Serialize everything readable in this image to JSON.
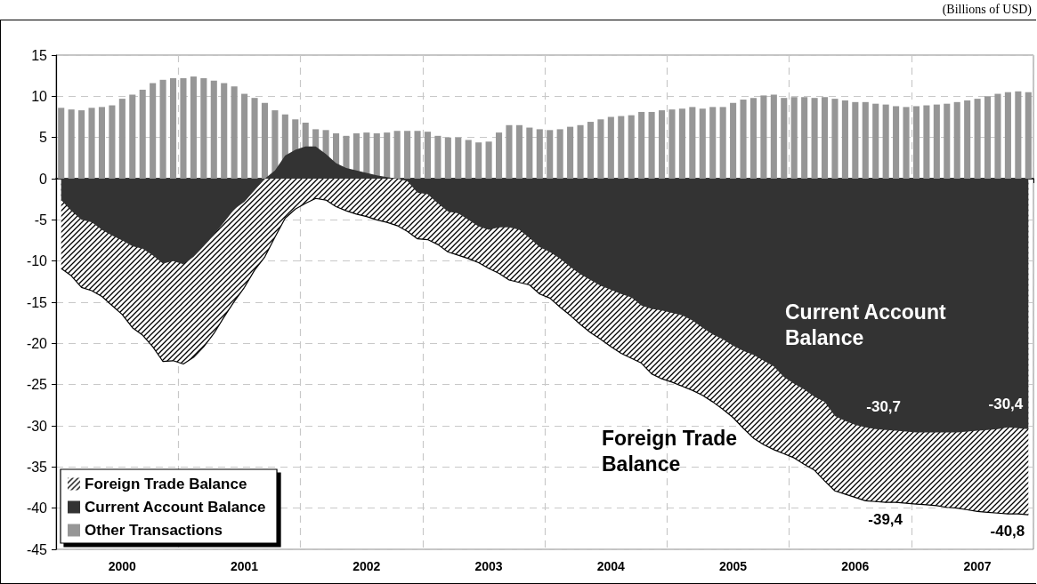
{
  "chart_data": {
    "type": "bar",
    "categories": [
      null,
      null,
      null,
      null,
      null,
      null,
      "2000",
      null,
      null,
      null,
      null,
      null,
      null,
      null,
      null,
      null,
      null,
      null,
      "2001",
      null,
      null,
      null,
      null,
      null,
      null,
      null,
      null,
      null,
      null,
      null,
      "2002",
      null,
      null,
      null,
      null,
      null,
      null,
      null,
      null,
      null,
      null,
      null,
      "2003",
      null,
      null,
      null,
      null,
      null,
      null,
      null,
      null,
      null,
      null,
      null,
      "2004",
      null,
      null,
      null,
      null,
      null,
      null,
      null,
      null,
      null,
      null,
      null,
      "2005",
      null,
      null,
      null,
      null,
      null,
      null,
      null,
      null,
      null,
      null,
      null,
      "2006",
      null,
      null,
      null,
      null,
      null,
      null,
      null,
      null,
      null,
      null,
      null,
      "2007",
      null,
      null,
      null,
      null,
      null
    ],
    "series": [
      {
        "name": "Foreign Trade Balance",
        "type": "area",
        "color": "#000000",
        "values": [
          -10.9,
          -11.8,
          -13.2,
          -13.6,
          -14.3,
          -15.4,
          -16.5,
          -18.1,
          -19.0,
          -20.4,
          -22.2,
          -22.1,
          -22.5,
          -21.7,
          -20.4,
          -18.8,
          -16.8,
          -14.9,
          -13.2,
          -11.1,
          -9.5,
          -7.1,
          -4.8,
          -3.7,
          -3.0,
          -2.4,
          -2.6,
          -3.4,
          -3.9,
          -4.3,
          -4.6,
          -5.0,
          -5.3,
          -5.7,
          -6.4,
          -7.3,
          -7.4,
          -8.0,
          -8.9,
          -9.3,
          -9.7,
          -10.2,
          -10.9,
          -11.5,
          -12.3,
          -12.6,
          -12.9,
          -14.0,
          -14.5,
          -15.6,
          -16.6,
          -17.7,
          -18.7,
          -19.5,
          -20.4,
          -21.2,
          -21.8,
          -22.4,
          -23.7,
          -24.3,
          -24.7,
          -25.2,
          -25.7,
          -26.3,
          -27.1,
          -28.0,
          -29.0,
          -30.3,
          -31.5,
          -32.3,
          -32.9,
          -33.4,
          -33.9,
          -34.7,
          -35.4,
          -36.7,
          -37.9,
          -38.3,
          -38.7,
          -39.1,
          -39.2,
          -39.3,
          -39.3,
          -39.4,
          -39.5,
          -39.6,
          -39.7,
          -39.9,
          -40.0,
          -40.2,
          -40.4,
          -40.5,
          -40.6,
          -40.7,
          -40.7,
          -40.8
        ],
        "value_labels": [
          null,
          null,
          null,
          null,
          null,
          null,
          null,
          null,
          null,
          null,
          null,
          null,
          null,
          null,
          null,
          null,
          null,
          null,
          null,
          null,
          null,
          null,
          null,
          null,
          null,
          null,
          null,
          null,
          null,
          null,
          null,
          null,
          null,
          null,
          null,
          null,
          null,
          null,
          null,
          null,
          null,
          null,
          null,
          null,
          null,
          null,
          null,
          null,
          null,
          null,
          null,
          null,
          null,
          null,
          null,
          null,
          null,
          null,
          null,
          null,
          null,
          null,
          null,
          null,
          null,
          null,
          null,
          null,
          null,
          null,
          null,
          null,
          null,
          null,
          null,
          null,
          null,
          null,
          null,
          null,
          null,
          null,
          null,
          "-39,4",
          null,
          null,
          null,
          null,
          null,
          null,
          null,
          null,
          null,
          null,
          null,
          "-40,8"
        ]
      },
      {
        "name": "Current Account Balance",
        "type": "area",
        "color": "#333333",
        "values": [
          -2.6,
          -3.9,
          -5.0,
          -5.3,
          -6.2,
          -6.9,
          -7.5,
          -8.2,
          -8.5,
          -9.3,
          -10.3,
          -10.0,
          -10.4,
          -9.5,
          -8.2,
          -6.8,
          -5.3,
          -3.7,
          -2.8,
          -1.4,
          0.0,
          1.0,
          2.8,
          3.5,
          3.9,
          3.9,
          3.0,
          1.9,
          1.3,
          1.0,
          0.7,
          0.4,
          0.2,
          0.0,
          -0.3,
          -1.7,
          -1.9,
          -3.0,
          -4.0,
          -4.2,
          -5.0,
          -5.8,
          -6.2,
          -5.9,
          -5.9,
          -6.2,
          -7.2,
          -8.3,
          -8.9,
          -9.7,
          -10.7,
          -11.6,
          -12.3,
          -13.0,
          -13.5,
          -14.0,
          -14.4,
          -15.4,
          -15.8,
          -16.0,
          -16.3,
          -16.6,
          -17.2,
          -18.1,
          -18.9,
          -19.5,
          -20.3,
          -20.9,
          -21.4,
          -22.1,
          -22.8,
          -24.1,
          -24.9,
          -25.6,
          -26.5,
          -27.1,
          -28.8,
          -29.4,
          -29.9,
          -30.2,
          -30.4,
          -30.5,
          -30.6,
          -30.7,
          -30.8,
          -30.8,
          -30.8,
          -30.8,
          -30.8,
          -30.7,
          -30.6,
          -30.5,
          -30.4,
          -30.2,
          -30.3,
          -30.4
        ],
        "value_labels": [
          null,
          null,
          null,
          null,
          null,
          null,
          null,
          null,
          null,
          null,
          null,
          null,
          null,
          null,
          null,
          null,
          null,
          null,
          null,
          null,
          null,
          null,
          null,
          null,
          null,
          null,
          null,
          null,
          null,
          null,
          null,
          null,
          null,
          null,
          null,
          null,
          null,
          null,
          null,
          null,
          null,
          null,
          null,
          null,
          null,
          null,
          null,
          null,
          null,
          null,
          null,
          null,
          null,
          null,
          null,
          null,
          null,
          null,
          null,
          null,
          null,
          null,
          null,
          null,
          null,
          null,
          null,
          null,
          null,
          null,
          null,
          null,
          null,
          null,
          null,
          null,
          null,
          null,
          null,
          null,
          null,
          null,
          null,
          "-30,7",
          null,
          null,
          null,
          null,
          null,
          null,
          null,
          null,
          null,
          null,
          null,
          "-30,4"
        ]
      },
      {
        "name": "Other Transactions",
        "color": "#969696",
        "values": [
          8.6,
          8.4,
          8.3,
          8.6,
          8.7,
          8.9,
          9.7,
          10.2,
          10.8,
          11.6,
          12.0,
          12.2,
          12.2,
          12.4,
          12.2,
          11.9,
          11.6,
          11.2,
          10.3,
          9.8,
          9.2,
          8.3,
          7.8,
          7.2,
          6.8,
          6.0,
          5.9,
          5.5,
          5.2,
          5.5,
          5.6,
          5.5,
          5.6,
          5.8,
          5.8,
          5.8,
          5.7,
          5.2,
          5.0,
          5.0,
          4.7,
          4.4,
          4.5,
          5.6,
          6.5,
          6.5,
          6.2,
          6.0,
          5.9,
          6.0,
          6.3,
          6.5,
          6.9,
          7.2,
          7.5,
          7.6,
          7.7,
          8.1,
          8.1,
          8.3,
          8.4,
          8.5,
          8.7,
          8.5,
          8.7,
          8.7,
          9.2,
          9.6,
          9.8,
          10.1,
          10.2,
          9.8,
          9.9,
          9.9,
          9.8,
          9.9,
          9.7,
          9.5,
          9.3,
          9.3,
          9.1,
          9.0,
          8.8,
          8.7,
          8.8,
          8.9,
          9.0,
          9.1,
          9.3,
          9.5,
          9.7,
          10.0,
          10.3,
          10.5,
          10.6,
          10.5
        ]
      }
    ],
    "ylim": [
      -45,
      15
    ],
    "yticks": [
      -45,
      -40,
      -35,
      -30,
      -25,
      -20,
      -15,
      -10,
      -5,
      0,
      5,
      10,
      15
    ],
    "grid": true,
    "legend": "bottom left",
    "annotations": [
      "(Billions of USD)",
      "Current Account Balance",
      "Foreign Trade Balance"
    ]
  }
}
